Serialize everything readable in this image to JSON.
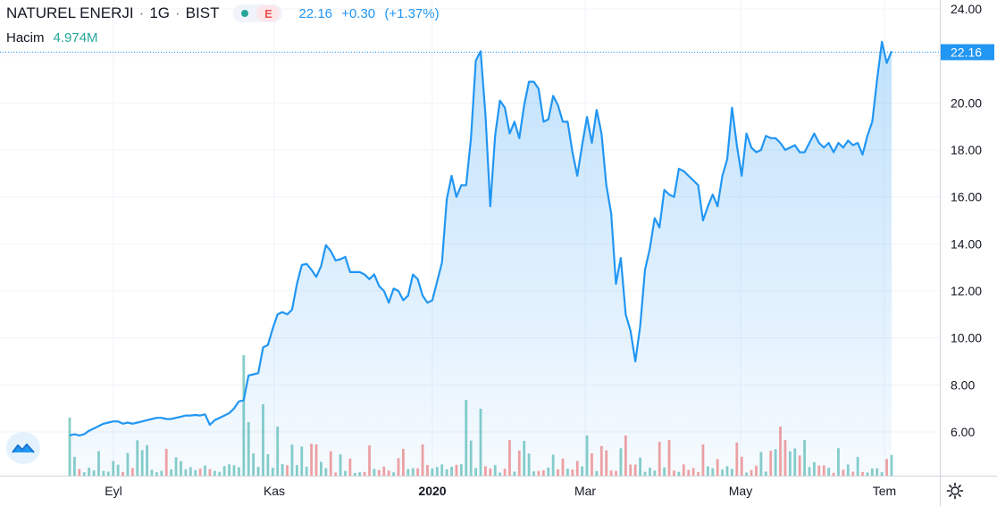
{
  "header": {
    "symbol": "NATUREL ENERJI",
    "interval": "1G",
    "exchange": "BIST",
    "pill_label": "E",
    "last": "22.16",
    "change": "+0.30",
    "change_pct": "(+1.37%)"
  },
  "volume": {
    "label": "Hacim",
    "value": "4.974M"
  },
  "price_tag": "22.16",
  "colors": {
    "line": "#2196f3",
    "vol_up": "#26a69a",
    "vol_down": "#ef5350"
  },
  "icons": [
    "tradingview-logo-icon",
    "gear-icon"
  ],
  "chart_data": {
    "type": "area",
    "ylim": [
      4.0,
      24.5
    ],
    "y_ticks": [
      "24.00",
      "22.00",
      "20.00",
      "18.00",
      "16.00",
      "14.00",
      "12.00",
      "10.00",
      "8.00",
      "6.00"
    ],
    "x_ticks": [
      "Eyl",
      "Kas",
      "2020",
      "Mar",
      "May",
      "Tem"
    ],
    "close": [
      5.85,
      5.9,
      5.85,
      5.9,
      6.05,
      6.15,
      6.25,
      6.35,
      6.4,
      6.45,
      6.45,
      6.35,
      6.4,
      6.35,
      6.4,
      6.45,
      6.5,
      6.55,
      6.6,
      6.6,
      6.55,
      6.55,
      6.6,
      6.65,
      6.7,
      6.7,
      6.72,
      6.7,
      6.75,
      6.3,
      6.5,
      6.6,
      6.7,
      6.8,
      7.0,
      7.3,
      7.35,
      8.4,
      8.45,
      8.5,
      9.6,
      9.7,
      10.4,
      11.0,
      11.1,
      11.0,
      11.2,
      12.3,
      13.1,
      13.15,
      12.9,
      12.6,
      13.05,
      13.95,
      13.7,
      13.3,
      13.35,
      13.45,
      12.8,
      12.8,
      12.8,
      12.7,
      12.5,
      12.7,
      12.2,
      12.0,
      11.5,
      12.1,
      12.0,
      11.6,
      11.8,
      12.7,
      12.5,
      11.8,
      11.5,
      11.6,
      12.4,
      13.2,
      15.9,
      16.9,
      16.0,
      16.5,
      16.5,
      18.5,
      21.8,
      22.2,
      19.5,
      15.6,
      18.6,
      20.1,
      19.8,
      18.7,
      19.2,
      18.5,
      19.9,
      20.9,
      20.9,
      20.6,
      19.2,
      19.3,
      20.3,
      19.9,
      19.2,
      19.2,
      17.9,
      16.9,
      18.2,
      19.4,
      18.3,
      19.7,
      18.7,
      16.5,
      15.3,
      12.3,
      13.4,
      11.0,
      10.3,
      9.0,
      10.5,
      12.9,
      13.8,
      15.1,
      14.7,
      16.3,
      16.1,
      16.0,
      17.2,
      17.1,
      16.9,
      16.7,
      16.5,
      15.0,
      15.6,
      16.1,
      15.6,
      16.9,
      17.6,
      19.8,
      18.2,
      16.9,
      18.7,
      18.1,
      17.9,
      18.0,
      18.6,
      18.5,
      18.5,
      18.3,
      18.0,
      18.1,
      18.2,
      17.9,
      17.9,
      18.3,
      18.7,
      18.3,
      18.1,
      18.3,
      17.9,
      18.3,
      18.1,
      18.4,
      18.2,
      18.3,
      17.8,
      18.6,
      19.2,
      21.0,
      22.6,
      21.7,
      22.2
    ],
    "volume_first_digits": "decorative-bars"
  }
}
